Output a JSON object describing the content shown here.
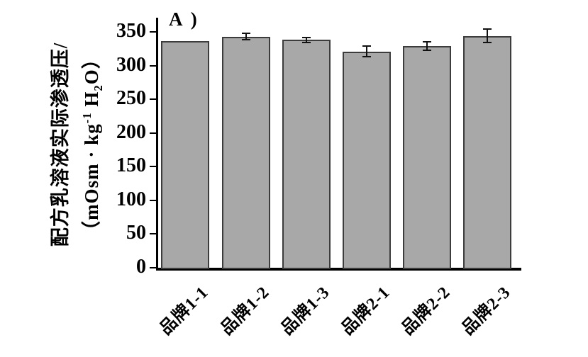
{
  "figure": {
    "background": "#ffffff"
  },
  "chart_data": {
    "type": "bar",
    "panel_label": "A )",
    "title": "",
    "xlabel": "",
    "ylabel_line1": "配方乳溶液实际渗透压/",
    "ylabel_line2_parts": {
      "pre": "（mOsm · kg",
      "sup": "-1",
      "mid": " H",
      "sub": "2",
      "post": "O）"
    },
    "ylabel_full": "配方乳溶液实际渗透压/（mOsm·kg⁻¹H₂O）",
    "categories": [
      "品牌1-1",
      "品牌1-2",
      "品牌1-3",
      "品牌2-1",
      "品牌2-2",
      "品牌2-3"
    ],
    "values": [
      336,
      343,
      338,
      321,
      329,
      344
    ],
    "errors": [
      0,
      5,
      4,
      8,
      6,
      10
    ],
    "ylim": [
      0,
      350
    ],
    "yticks": [
      0,
      50,
      100,
      150,
      200,
      250,
      300,
      350
    ],
    "grid": false,
    "legend": null,
    "colors": {
      "bar_fill": "#a8a8a8",
      "bar_border": "#3c3c3c",
      "axis": "#000000",
      "error": "#111111",
      "text": "#000000"
    }
  }
}
